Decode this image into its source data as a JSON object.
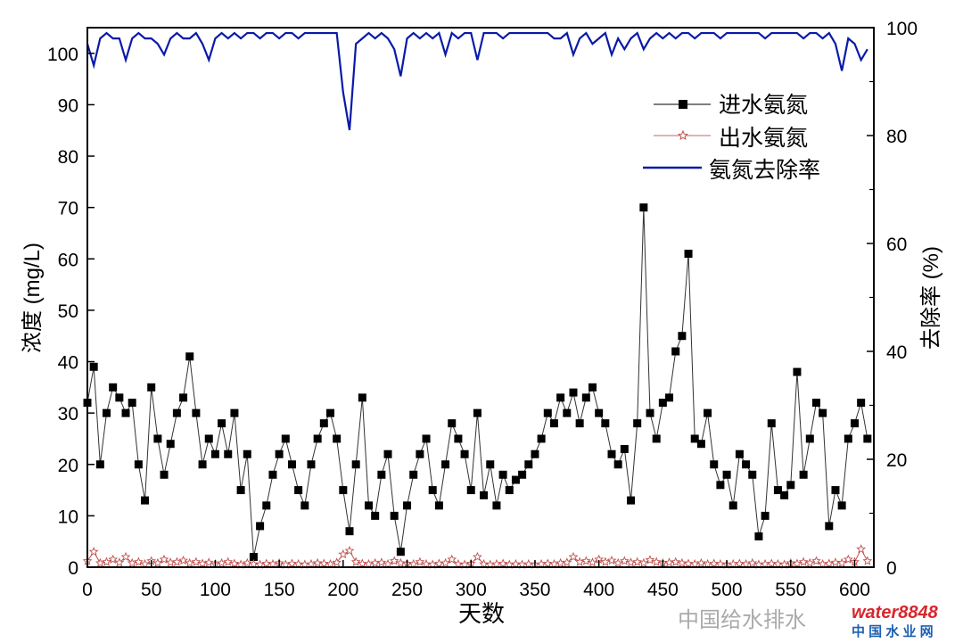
{
  "chart_data": {
    "type": "line",
    "xlabel": "天数",
    "ylabel": "浓度 (mg/L)",
    "y2label": "去除率 (%)",
    "xlim": [
      0,
      615
    ],
    "ylim": [
      0,
      105
    ],
    "y2lim": [
      0,
      100
    ],
    "xticks": [
      0,
      50,
      100,
      150,
      200,
      250,
      300,
      350,
      400,
      450,
      500,
      550,
      600
    ],
    "yticks": [
      0,
      10,
      20,
      30,
      40,
      50,
      60,
      70,
      80,
      90,
      100
    ],
    "y2ticks": [
      0,
      20,
      40,
      60,
      80,
      100
    ],
    "legend_position": "top-right",
    "grid": false,
    "x": [
      0,
      5,
      10,
      15,
      20,
      25,
      30,
      35,
      40,
      45,
      50,
      55,
      60,
      65,
      70,
      75,
      80,
      85,
      90,
      95,
      100,
      105,
      110,
      115,
      120,
      125,
      130,
      135,
      140,
      145,
      150,
      155,
      160,
      165,
      170,
      175,
      180,
      185,
      190,
      195,
      200,
      205,
      210,
      215,
      220,
      225,
      230,
      235,
      240,
      245,
      250,
      255,
      260,
      265,
      270,
      275,
      280,
      285,
      290,
      295,
      300,
      305,
      310,
      315,
      320,
      325,
      330,
      335,
      340,
      345,
      350,
      355,
      360,
      365,
      370,
      375,
      380,
      385,
      390,
      395,
      400,
      405,
      410,
      415,
      420,
      425,
      430,
      435,
      440,
      445,
      450,
      455,
      460,
      465,
      470,
      475,
      480,
      485,
      490,
      495,
      500,
      505,
      510,
      515,
      520,
      525,
      530,
      535,
      540,
      545,
      550,
      555,
      560,
      565,
      570,
      575,
      580,
      585,
      590,
      595,
      600,
      605,
      610
    ],
    "series": [
      {
        "name": "进水氨氮",
        "axis": "left",
        "color": "#000000",
        "marker": "square",
        "values": [
          32,
          39,
          20,
          30,
          35,
          33,
          30,
          32,
          20,
          13,
          35,
          25,
          18,
          24,
          30,
          33,
          41,
          30,
          20,
          25,
          22,
          28,
          22,
          30,
          15,
          22,
          2,
          8,
          12,
          18,
          22,
          25,
          20,
          15,
          12,
          20,
          25,
          28,
          30,
          25,
          15,
          7,
          20,
          33,
          12,
          10,
          18,
          22,
          10,
          3,
          12,
          18,
          22,
          25,
          15,
          12,
          20,
          28,
          25,
          22,
          15,
          30,
          14,
          20,
          12,
          18,
          15,
          17,
          18,
          20,
          22,
          25,
          30,
          28,
          33,
          30,
          34,
          28,
          33,
          35,
          30,
          28,
          22,
          20,
          23,
          13,
          28,
          70,
          30,
          25,
          32,
          33,
          42,
          45,
          61,
          25,
          24,
          30,
          20,
          16,
          18,
          12,
          22,
          20,
          18,
          6,
          10,
          28,
          15,
          14,
          16,
          38,
          18,
          25,
          32,
          30,
          8,
          15,
          12,
          25,
          28,
          32,
          25
        ]
      },
      {
        "name": "出水氨氮",
        "axis": "left",
        "color": "#c0504d",
        "marker": "star",
        "values": [
          1.2,
          3.0,
          0.8,
          1.0,
          1.5,
          0.9,
          2.0,
          0.8,
          1.0,
          0.6,
          1.2,
          0.8,
          1.5,
          0.9,
          1.0,
          1.3,
          0.8,
          1.0,
          0.7,
          0.9,
          0.6,
          0.8,
          1.0,
          0.7,
          0.5,
          0.8,
          0.6,
          0.5,
          0.7,
          0.6,
          0.8,
          0.5,
          0.7,
          0.6,
          0.5,
          0.6,
          0.8,
          0.7,
          0.6,
          0.9,
          2.5,
          3.2,
          1.0,
          0.7,
          0.6,
          0.8,
          0.9,
          0.6,
          1.2,
          0.8,
          0.7,
          0.6,
          1.0,
          0.6,
          0.5,
          0.7,
          0.8,
          1.5,
          0.6,
          0.5,
          0.7,
          2.0,
          0.6,
          0.5,
          0.6,
          0.7,
          0.5,
          0.6,
          0.5,
          0.6,
          0.5,
          0.6,
          0.7,
          0.6,
          0.8,
          0.9,
          2.0,
          1.0,
          1.2,
          0.9,
          1.5,
          1.0,
          1.3,
          0.8,
          1.2,
          0.9,
          1.0,
          0.8,
          1.4,
          1.0,
          0.8,
          0.9,
          1.0,
          0.8,
          0.7,
          0.6,
          0.8,
          0.6,
          0.7,
          0.6,
          0.5,
          0.6,
          0.7,
          0.6,
          0.8,
          0.5,
          0.6,
          0.7,
          0.6,
          0.5,
          0.8,
          0.7,
          1.0,
          0.8,
          1.2,
          0.6,
          0.7,
          0.9,
          0.8,
          1.5,
          1.0,
          3.5,
          1.2
        ]
      },
      {
        "name": "氨氮去除率",
        "axis": "right",
        "color": "#0a1aa8",
        "marker": "none",
        "values": [
          97,
          93,
          98,
          99,
          98,
          98,
          94,
          98,
          99,
          98,
          98,
          97,
          95,
          98,
          99,
          98,
          98,
          99,
          97,
          94,
          98,
          99,
          98,
          99,
          98,
          99,
          99,
          98,
          99,
          99,
          98,
          99,
          99,
          98,
          99,
          99,
          99,
          99,
          99,
          99,
          88,
          81,
          97,
          98,
          99,
          98,
          99,
          98,
          96,
          91,
          98,
          99,
          98,
          99,
          98,
          99,
          95,
          99,
          98,
          99,
          99,
          94,
          99,
          99,
          99,
          98,
          99,
          99,
          99,
          99,
          99,
          99,
          99,
          98,
          98,
          99,
          95,
          98,
          99,
          97,
          98,
          99,
          95,
          98,
          96,
          98,
          99,
          96,
          98,
          99,
          98,
          99,
          98,
          99,
          99,
          98,
          99,
          99,
          99,
          98,
          99,
          99,
          99,
          99,
          99,
          99,
          98,
          99,
          99,
          99,
          99,
          99,
          98,
          99,
          99,
          98,
          99,
          97,
          92,
          98,
          97,
          94,
          96
        ]
      }
    ]
  },
  "watermark": {
    "text1": "中国给水排水",
    "logo_main": "water8848",
    "logo_sub": "中 国 水 业 网"
  }
}
